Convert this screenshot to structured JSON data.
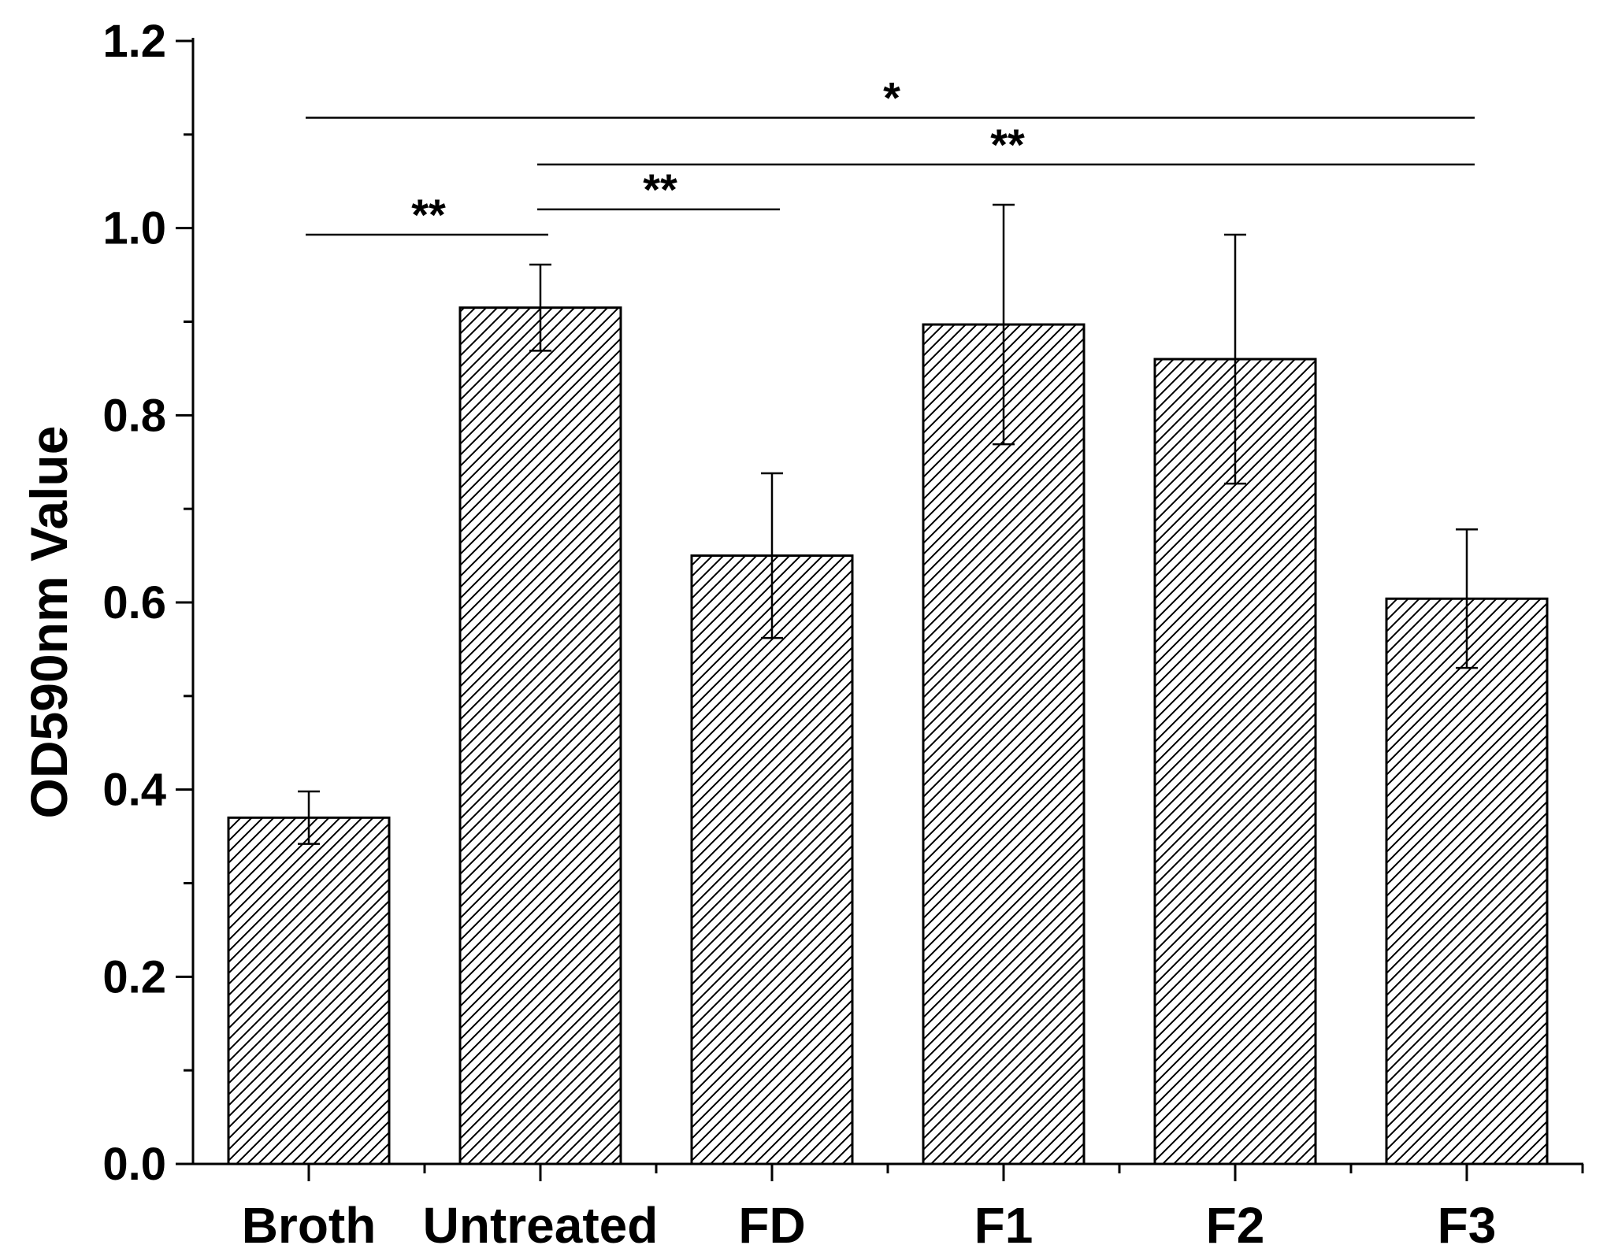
{
  "chart_data": {
    "type": "bar",
    "title": "",
    "xlabel": "",
    "ylabel": "OD590nm Value",
    "categories": [
      "Broth",
      "Untreated",
      "FD",
      "F1",
      "F2",
      "F3"
    ],
    "values": [
      0.37,
      0.915,
      0.65,
      0.897,
      0.86,
      0.604
    ],
    "errors": [
      0.028,
      0.046,
      0.088,
      0.128,
      0.133,
      0.074
    ],
    "ylim": [
      0,
      1.2
    ],
    "yticks": [
      "0.0",
      "0.2",
      "0.4",
      "0.6",
      "0.8",
      "1.0",
      "1.2"
    ],
    "ytick_values": [
      0,
      0.2,
      0.4,
      0.6,
      0.8,
      1.0,
      1.2
    ],
    "bar_fill": "hatched",
    "grid": false,
    "significance": [
      {
        "from": "Broth",
        "to": "Untreated",
        "label": "**",
        "y": 0.993
      },
      {
        "from": "Untreated",
        "to": "FD",
        "label": "**",
        "y": 1.02
      },
      {
        "from": "Untreated",
        "to": "F3",
        "label": "**",
        "y": 1.068
      },
      {
        "from": "Broth",
        "to": "F3",
        "label": "*",
        "y": 1.118
      }
    ]
  }
}
